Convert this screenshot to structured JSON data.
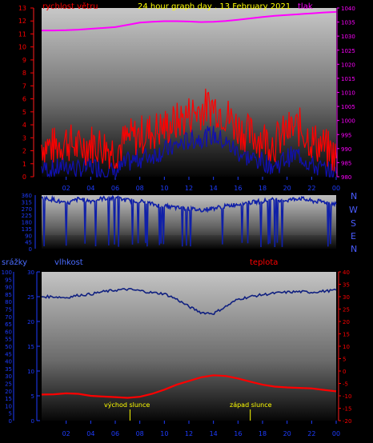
{
  "colors": {
    "background": "#000000",
    "wind": "#ff0000",
    "gust": "#1010b0",
    "pressure": "#ff00ff",
    "direction": "#1020a8",
    "humidity": "#102080",
    "temperature": "#ff0000",
    "title": "#ffff00",
    "axis_left": "#ff0000",
    "axis_right": "#ff00ff",
    "axis_blue": "#1e3cff",
    "compass": "#4a5cff",
    "event": "#ffff00"
  },
  "top_panel": {
    "title": "24 hour graph day . 13 February 2021",
    "left_label": "rychlost větru",
    "right_label": "tlak"
  },
  "direction_panel": {
    "compass": [
      "N",
      "W",
      "S",
      "E",
      "N"
    ]
  },
  "bottom_panel": {
    "rain_label": "srážky",
    "humidity_label": "vlhkost",
    "temp_label": "teplota",
    "sunrise_label": "východ slunce",
    "sunset_label": "západ slunce"
  },
  "chart_data": [
    {
      "type": "line",
      "title": "24 hour graph day . 13 February 2021",
      "x_ticks": [
        "02",
        "04",
        "06",
        "08",
        "10",
        "12",
        "14",
        "16",
        "18",
        "20",
        "22",
        "00"
      ],
      "left_axis": {
        "label": "rychlost větru",
        "ticks": [
          0,
          1,
          2,
          3,
          4,
          5,
          6,
          7,
          8,
          9,
          10,
          11,
          12,
          13
        ],
        "ylim": [
          0,
          13
        ]
      },
      "right_axis": {
        "label": "tlak",
        "ticks": [
          980,
          985,
          990,
          995,
          1000,
          1005,
          1010,
          1015,
          1020,
          1025,
          1030,
          1035,
          1040
        ],
        "ylim": [
          980,
          1040
        ]
      },
      "series": [
        {
          "name": "rychlost větru",
          "axis": "left",
          "x": [
            0,
            1,
            2,
            3,
            4,
            5,
            6,
            7,
            8,
            9,
            10,
            11,
            12,
            13,
            14,
            15,
            16,
            17,
            18,
            19,
            20,
            21,
            22,
            23,
            24
          ],
          "values": [
            2.5,
            2.3,
            2.8,
            2.2,
            2.6,
            2.4,
            2.0,
            2.9,
            3.2,
            3.5,
            3.8,
            4.2,
            4.8,
            5.2,
            5.5,
            4.8,
            3.8,
            3.2,
            3.0,
            2.6,
            3.5,
            3.8,
            2.8,
            2.3,
            1.5
          ]
        },
        {
          "name": "",
          "axis": "left",
          "x": [
            0,
            1,
            2,
            3,
            4,
            5,
            6,
            7,
            8,
            9,
            10,
            11,
            12,
            13,
            14,
            15,
            16,
            17,
            18,
            19,
            20,
            21,
            22,
            23,
            24
          ],
          "values": [
            0.7,
            0.5,
            0.9,
            0.5,
            0.8,
            0.6,
            0.3,
            1.1,
            1.4,
            1.7,
            2.0,
            2.4,
            2.8,
            3.0,
            3.2,
            2.6,
            1.9,
            1.4,
            1.2,
            0.8,
            1.5,
            1.7,
            0.9,
            0.5,
            0.2
          ]
        },
        {
          "name": "tlak",
          "axis": "right",
          "x": [
            0,
            1,
            2,
            3,
            4,
            5,
            6,
            7,
            8,
            9,
            10,
            11,
            12,
            13,
            14,
            15,
            16,
            17,
            18,
            19,
            20,
            21,
            22,
            23,
            24
          ],
          "values": [
            1032,
            1032,
            1032.1,
            1032.3,
            1032.6,
            1032.9,
            1033.2,
            1034,
            1034.8,
            1035.1,
            1035.3,
            1035.3,
            1035.2,
            1035,
            1035.1,
            1035.4,
            1035.8,
            1036.3,
            1036.8,
            1037.2,
            1037.5,
            1037.8,
            1038.1,
            1038.4,
            1038.6
          ]
        }
      ]
    },
    {
      "type": "line",
      "title": "",
      "x_ticks": [
        "02",
        "04",
        "06",
        "08",
        "10",
        "12",
        "14",
        "16",
        "18",
        "20",
        "22",
        "00"
      ],
      "y_ticks": [
        0,
        45,
        90,
        135,
        180,
        225,
        270,
        315,
        360
      ],
      "ylim": [
        0,
        360
      ],
      "series": [
        {
          "name": "",
          "x": [
            0,
            1,
            2,
            3,
            4,
            5,
            6,
            7,
            8,
            9,
            10,
            11,
            12,
            13,
            14,
            15,
            16,
            17,
            18,
            19,
            20,
            21,
            22,
            23,
            24
          ],
          "values": [
            340,
            330,
            300,
            335,
            320,
            338,
            340,
            325,
            320,
            300,
            285,
            275,
            268,
            260,
            272,
            285,
            300,
            310,
            320,
            330,
            325,
            340,
            320,
            315,
            300
          ]
        }
      ]
    },
    {
      "type": "line",
      "title": "",
      "x_ticks": [
        "02",
        "04",
        "06",
        "08",
        "10",
        "12",
        "14",
        "16",
        "18",
        "20",
        "22",
        "00"
      ],
      "rain_axis": {
        "label": "srážky",
        "ticks": [
          0,
          5,
          10,
          15,
          20,
          25,
          30,
          35,
          40,
          45,
          50,
          55,
          60,
          65,
          70,
          75,
          80,
          85,
          90,
          95,
          100
        ],
        "ylim": [
          0,
          100
        ]
      },
      "humidity_axis": {
        "label": "vlhkost",
        "ticks": [
          0,
          5,
          10,
          15,
          20,
          25,
          30
        ],
        "ylim": [
          0,
          30
        ]
      },
      "temp_axis": {
        "label": "teplota",
        "ticks": [
          -20,
          -15,
          -10,
          -5,
          0,
          5,
          10,
          15,
          20,
          25,
          30,
          35,
          40
        ],
        "ylim": [
          -20,
          40
        ]
      },
      "series": [
        {
          "name": "vlhkost",
          "axis": "humidity",
          "x": [
            0,
            1,
            2,
            3,
            4,
            5,
            6,
            7,
            8,
            9,
            10,
            11,
            12,
            13,
            14,
            15,
            16,
            17,
            18,
            19,
            20,
            21,
            22,
            23,
            24
          ],
          "values": [
            25,
            25,
            24.8,
            25.3,
            25.5,
            26,
            26.3,
            26.5,
            26.2,
            25.8,
            25.6,
            24.5,
            23,
            21.8,
            21.6,
            23,
            24.5,
            25,
            25.4,
            25.7,
            25.9,
            26,
            25.9,
            26.1,
            26.3
          ]
        },
        {
          "name": "teplota",
          "axis": "temp",
          "x": [
            0,
            1,
            2,
            3,
            4,
            5,
            6,
            7,
            8,
            9,
            10,
            11,
            12,
            13,
            14,
            15,
            16,
            17,
            18,
            19,
            20,
            21,
            22,
            23,
            24
          ],
          "values": [
            -9.5,
            -9.4,
            -9,
            -9.2,
            -10,
            -10.3,
            -10.5,
            -10.8,
            -10.4,
            -9.2,
            -7.5,
            -5.5,
            -4,
            -2.5,
            -1.7,
            -2,
            -3,
            -4.3,
            -5.5,
            -6.3,
            -6.6,
            -6.8,
            -7,
            -7.6,
            -8.2
          ]
        }
      ],
      "events": [
        {
          "label": "východ slunce",
          "hour": 7.2
        },
        {
          "label": "západ slunce",
          "hour": 17.0
        }
      ]
    }
  ]
}
